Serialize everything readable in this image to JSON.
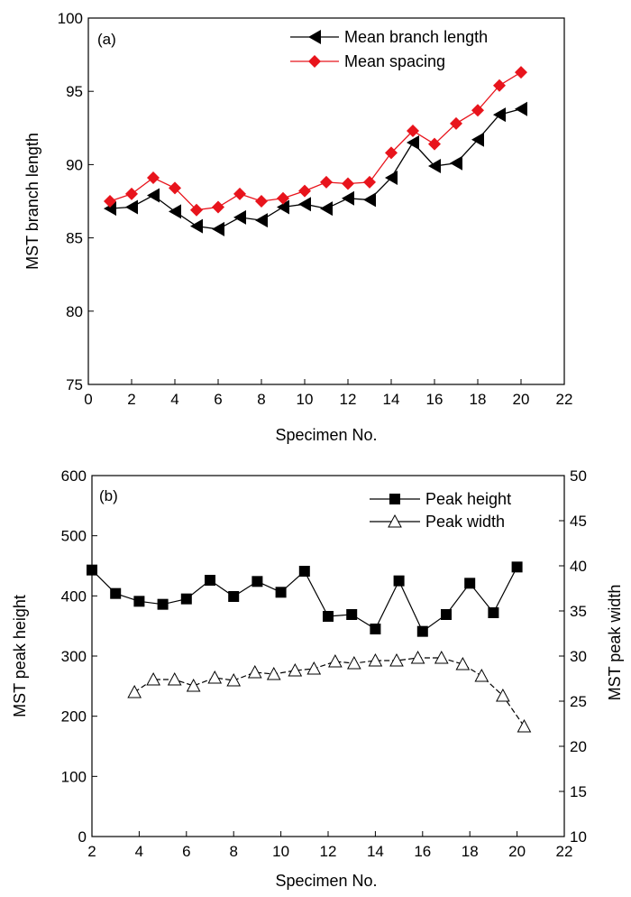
{
  "chart_data": [
    {
      "type": "line",
      "panel_label": "(a)",
      "xlabel": "Specimen No.",
      "ylabel": "MST branch length",
      "xlim": [
        0,
        22
      ],
      "ylim": [
        75,
        100
      ],
      "xticks": [
        0,
        2,
        4,
        6,
        8,
        10,
        12,
        14,
        16,
        18,
        20,
        22
      ],
      "yticks": [
        75,
        80,
        85,
        90,
        95,
        100
      ],
      "grid": false,
      "legend_position": "top-right",
      "series": [
        {
          "name": "Mean branch length",
          "color": "#000000",
          "marker": "triangle-left",
          "x": [
            1,
            2,
            3,
            4,
            5,
            6,
            7,
            8,
            9,
            10,
            11,
            12,
            13,
            14,
            15,
            16,
            17,
            18,
            19,
            20
          ],
          "y": [
            87.0,
            87.1,
            87.9,
            86.8,
            85.8,
            85.6,
            86.4,
            86.2,
            87.1,
            87.3,
            87.0,
            87.7,
            87.6,
            89.1,
            91.5,
            89.9,
            90.1,
            91.7,
            93.4,
            93.8
          ]
        },
        {
          "name": "Mean spacing",
          "color": "#e8141c",
          "marker": "diamond",
          "x": [
            1,
            2,
            3,
            4,
            5,
            6,
            7,
            8,
            9,
            10,
            11,
            12,
            13,
            14,
            15,
            16,
            17,
            18,
            19,
            20
          ],
          "y": [
            87.5,
            88.0,
            89.1,
            88.4,
            86.9,
            87.1,
            88.0,
            87.5,
            87.7,
            88.2,
            88.8,
            88.7,
            88.8,
            90.8,
            92.3,
            91.4,
            92.8,
            93.7,
            95.4,
            96.3
          ]
        }
      ]
    },
    {
      "type": "line",
      "panel_label": "(b)",
      "xlabel": "Specimen No.",
      "ylabel": "MST peak height",
      "y2label": "MST peak width",
      "xlim": [
        2,
        22
      ],
      "ylim": [
        0,
        600
      ],
      "y2lim": [
        10,
        50
      ],
      "xticks": [
        2,
        4,
        6,
        8,
        10,
        12,
        14,
        16,
        18,
        20,
        22
      ],
      "yticks": [
        0,
        100,
        200,
        300,
        400,
        500,
        600
      ],
      "y2ticks": [
        10,
        15,
        20,
        25,
        30,
        35,
        40,
        45,
        50
      ],
      "grid": false,
      "legend_position": "top-right",
      "series": [
        {
          "name": "Peak height",
          "axis": "left",
          "color": "#000000",
          "marker": "square",
          "x": [
            2,
            3,
            4,
            5,
            6,
            7,
            8,
            9,
            10,
            11,
            12,
            13,
            14,
            15,
            16,
            17,
            18,
            19,
            20
          ],
          "y": [
            443,
            404,
            391,
            386,
            395,
            426,
            399,
            424,
            406,
            441,
            366,
            369,
            345,
            425,
            341,
            369,
            421,
            372,
            448
          ]
        },
        {
          "name": "Peak width",
          "axis": "right",
          "color": "#000000",
          "marker": "open-triangle",
          "x": [
            3.8,
            4.6,
            5.5,
            6.3,
            7.2,
            8.0,
            8.9,
            9.7,
            10.6,
            11.4,
            12.3,
            13.1,
            14.0,
            14.9,
            15.8,
            16.8,
            17.7,
            18.5,
            19.4,
            20.3
          ],
          "y": [
            26.0,
            27.4,
            27.4,
            26.7,
            27.6,
            27.3,
            28.2,
            28.0,
            28.4,
            28.6,
            29.4,
            29.2,
            29.5,
            29.5,
            29.8,
            29.8,
            29.1,
            27.8,
            25.6,
            22.2
          ]
        }
      ]
    }
  ]
}
